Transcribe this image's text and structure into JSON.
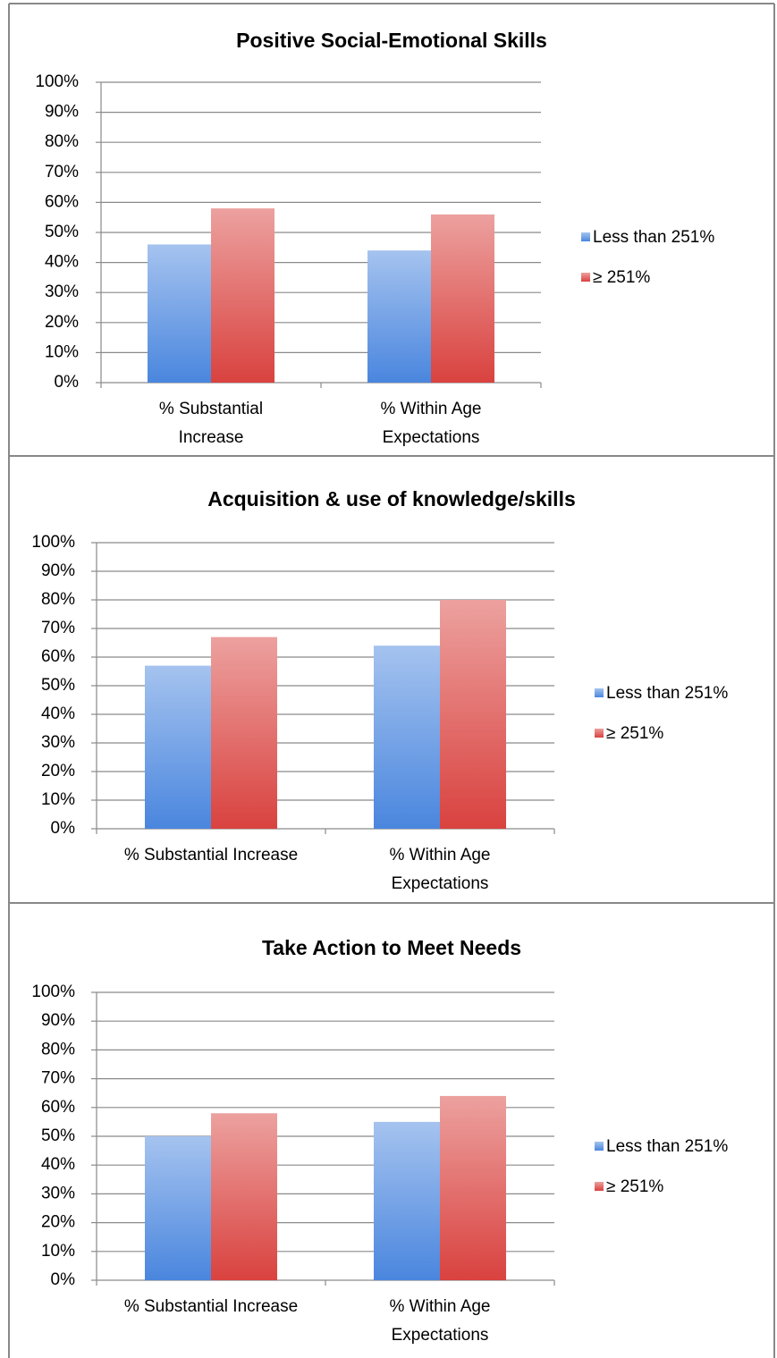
{
  "chart_data": [
    {
      "type": "bar",
      "title": "Positive Social-Emotional Skills",
      "categories": [
        "% Substantial Increase",
        "% Within Age Expectations"
      ],
      "series": [
        {
          "name": "Less than 251%",
          "color": "#4a86de",
          "values": [
            46,
            44
          ]
        },
        {
          "name": "≥ 251%",
          "color": "#d9423f",
          "values": [
            58,
            56
          ]
        }
      ],
      "ylim": [
        0,
        100
      ],
      "yticks": [
        {
          "value": 0,
          "label": "0%"
        },
        {
          "value": 10,
          "label": "10%"
        },
        {
          "value": 20,
          "label": "20%"
        },
        {
          "value": 30,
          "label": "30%"
        },
        {
          "value": 40,
          "label": "40%"
        },
        {
          "value": 50,
          "label": "50%"
        },
        {
          "value": 60,
          "label": "60%"
        },
        {
          "value": 70,
          "label": "70%"
        },
        {
          "value": 80,
          "label": "80%"
        },
        {
          "value": 90,
          "label": "90%"
        },
        {
          "value": 100,
          "label": "100%"
        }
      ],
      "grid": true,
      "legend": "right"
    },
    {
      "type": "bar",
      "title": "Acquisition & use of knowledge/skills",
      "categories": [
        "% Substantial Increase",
        "% Within Age Expectations"
      ],
      "series": [
        {
          "name": "Less than 251%",
          "color": "#4a86de",
          "values": [
            57,
            64
          ]
        },
        {
          "name": "≥ 251%",
          "color": "#d9423f",
          "values": [
            67,
            80
          ]
        }
      ],
      "ylim": [
        0,
        100
      ],
      "yticks": [
        {
          "value": 0,
          "label": "0%"
        },
        {
          "value": 10,
          "label": "10%"
        },
        {
          "value": 20,
          "label": "20%"
        },
        {
          "value": 30,
          "label": "30%"
        },
        {
          "value": 40,
          "label": "40%"
        },
        {
          "value": 50,
          "label": "50%"
        },
        {
          "value": 60,
          "label": "60%"
        },
        {
          "value": 70,
          "label": "70%"
        },
        {
          "value": 80,
          "label": "80%"
        },
        {
          "value": 90,
          "label": "90%"
        },
        {
          "value": 100,
          "label": "100%"
        }
      ],
      "grid": true,
      "legend": "right"
    },
    {
      "type": "bar",
      "title": "Take Action to Meet Needs",
      "categories": [
        "% Substantial Increase",
        "% Within Age Expectations"
      ],
      "series": [
        {
          "name": "Less than 251%",
          "color": "#4a86de",
          "values": [
            50,
            55
          ]
        },
        {
          "name": "≥ 251%",
          "color": "#d9423f",
          "values": [
            58,
            64
          ]
        }
      ],
      "ylim": [
        0,
        100
      ],
      "yticks": [
        {
          "value": 0,
          "label": "0%"
        },
        {
          "value": 10,
          "label": "10%"
        },
        {
          "value": 20,
          "label": "20%"
        },
        {
          "value": 30,
          "label": "30%"
        },
        {
          "value": 40,
          "label": "40%"
        },
        {
          "value": 50,
          "label": "50%"
        },
        {
          "value": 60,
          "label": "60%"
        },
        {
          "value": 70,
          "label": "70%"
        },
        {
          "value": 80,
          "label": "80%"
        },
        {
          "value": 90,
          "label": "90%"
        },
        {
          "value": 100,
          "label": "100%"
        }
      ],
      "grid": true,
      "legend": "right"
    }
  ]
}
